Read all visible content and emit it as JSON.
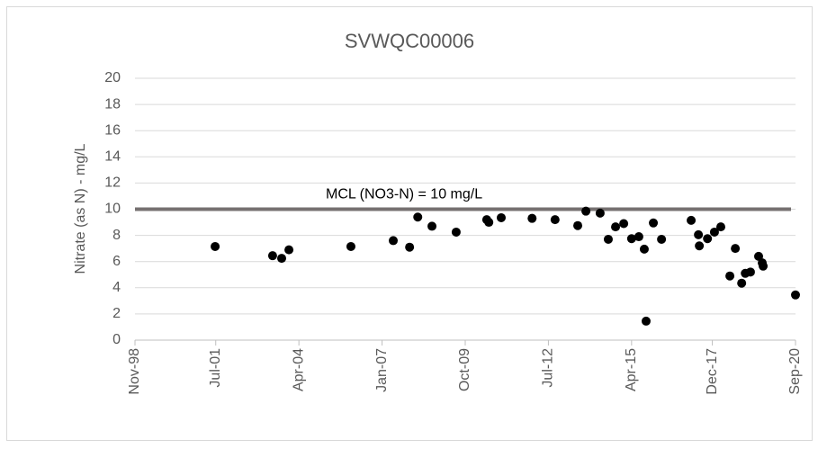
{
  "chart_data": {
    "type": "scatter",
    "title": "SVWQC00006",
    "y_label": "Nitrate (as N) - mg/L",
    "x": [
      2001.48,
      2003.38,
      2003.68,
      2003.92,
      2005.97,
      2007.37,
      2007.91,
      2008.18,
      2008.65,
      2009.45,
      2010.46,
      2010.53,
      2010.94,
      2011.96,
      2012.72,
      2013.47,
      2013.74,
      2014.21,
      2014.48,
      2014.72,
      2014.99,
      2015.25,
      2015.49,
      2015.67,
      2015.73,
      2015.97,
      2016.24,
      2017.22,
      2017.46,
      2017.49,
      2017.76,
      2017.99,
      2018.2,
      2018.5,
      2018.68,
      2018.89,
      2019.01,
      2019.18,
      2019.45,
      2019.57,
      2019.6,
      2020.67
    ],
    "values": [
      7.15,
      6.45,
      6.25,
      6.9,
      7.15,
      7.6,
      7.1,
      9.4,
      8.7,
      8.25,
      9.2,
      9.0,
      9.35,
      9.3,
      9.2,
      8.75,
      9.85,
      9.7,
      7.7,
      8.65,
      8.9,
      7.75,
      7.9,
      6.95,
      1.45,
      8.95,
      7.7,
      9.15,
      8.05,
      7.2,
      7.75,
      8.25,
      8.65,
      4.9,
      7.0,
      4.35,
      5.1,
      5.2,
      6.4,
      5.9,
      5.65,
      3.45
    ],
    "color": "#000000",
    "xlim": [
      1998.83,
      2020.67
    ],
    "xticks": [
      {
        "value": 1998.83,
        "label": "Nov-98"
      },
      {
        "value": 2001.5,
        "label": "Jul-01"
      },
      {
        "value": 2004.25,
        "label": "Apr-04"
      },
      {
        "value": 2007.0,
        "label": "Jan-07"
      },
      {
        "value": 2009.75,
        "label": "Oct-09"
      },
      {
        "value": 2012.5,
        "label": "Jul-12"
      },
      {
        "value": 2015.25,
        "label": "Apr-15"
      },
      {
        "value": 2017.92,
        "label": "Dec-17"
      },
      {
        "value": 2020.67,
        "label": "Sep-20"
      }
    ],
    "ylim": [
      0,
      20
    ],
    "yticks": [
      0,
      2,
      4,
      6,
      8,
      10,
      12,
      14,
      16,
      18,
      20
    ],
    "grid": true,
    "annotation": {
      "text": "MCL (NO3-N) = 10 mg/L",
      "value": 10,
      "color": "#767171"
    }
  }
}
